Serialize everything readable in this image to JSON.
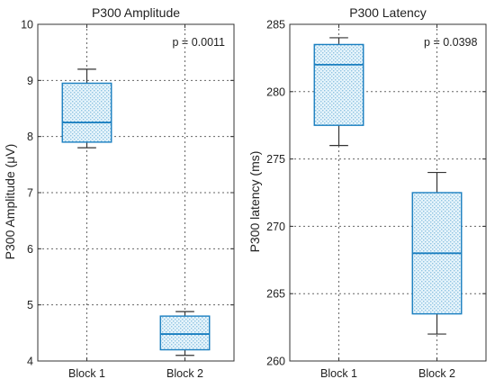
{
  "chart_data": [
    {
      "type": "box",
      "title": "P300 Amplitude",
      "ylabel": "P300 Amplitude (μV)",
      "xlabel": "",
      "categories": [
        "Block 1",
        "Block 2"
      ],
      "ylim": [
        4,
        10
      ],
      "yticks": [
        "4",
        "5",
        "6",
        "7",
        "8",
        "9",
        "10"
      ],
      "grid": true,
      "annotation": "p = 0.0011",
      "boxes": [
        {
          "category": "Block 1",
          "whisker_low": 7.8,
          "q1": 7.9,
          "median": 8.25,
          "q3": 8.95,
          "whisker_high": 9.2
        },
        {
          "category": "Block 2",
          "whisker_low": 4.1,
          "q1": 4.2,
          "median": 4.48,
          "q3": 4.8,
          "whisker_high": 4.88
        }
      ],
      "colors": {
        "box": "#1a7fc0",
        "fill": "#e2f3fa",
        "dots": "#9cc9e4"
      }
    },
    {
      "type": "box",
      "title": "P300 Latency",
      "ylabel": "P300 latency (ms)",
      "xlabel": "",
      "categories": [
        "Block 1",
        "Block 2"
      ],
      "ylim": [
        260,
        285
      ],
      "yticks": [
        "260",
        "265",
        "270",
        "275",
        "280",
        "285"
      ],
      "grid": true,
      "annotation": "p = 0.0398",
      "boxes": [
        {
          "category": "Block 1",
          "whisker_low": 276,
          "q1": 277.5,
          "median": 282,
          "q3": 283.5,
          "whisker_high": 284
        },
        {
          "category": "Block 2",
          "whisker_low": 262,
          "q1": 263.5,
          "median": 268,
          "q3": 272.5,
          "whisker_high": 274
        }
      ],
      "colors": {
        "box": "#1a7fc0",
        "fill": "#e2f3fa",
        "dots": "#9cc9e4"
      }
    }
  ]
}
